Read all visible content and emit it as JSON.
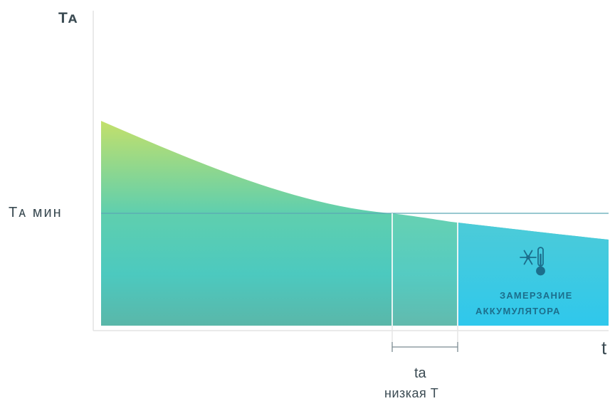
{
  "diagram": {
    "y_axis_label": "Tᴀ",
    "x_axis_label": "t",
    "threshold_label": "Tᴀ мин",
    "interval_label_line1": "tа",
    "interval_label_line2": "низкая Т",
    "freeze_label_line1": "ЗАМЕРЗАНИЕ",
    "freeze_label_line2": "АККУМУЛЯТОРА",
    "freeze_icon": "snowflake-thermometer-icon",
    "colors": {
      "curve_top": "#c3e06b",
      "curve_mid": "#5fcfae",
      "curve_bottom": "#5ab7a9",
      "freeze_zone": "#39c9e7",
      "threshold_line": "#5aa8b4",
      "axis": "#dedede",
      "text": "#3a4a52",
      "freeze_text": "#1c6e8c"
    }
  }
}
